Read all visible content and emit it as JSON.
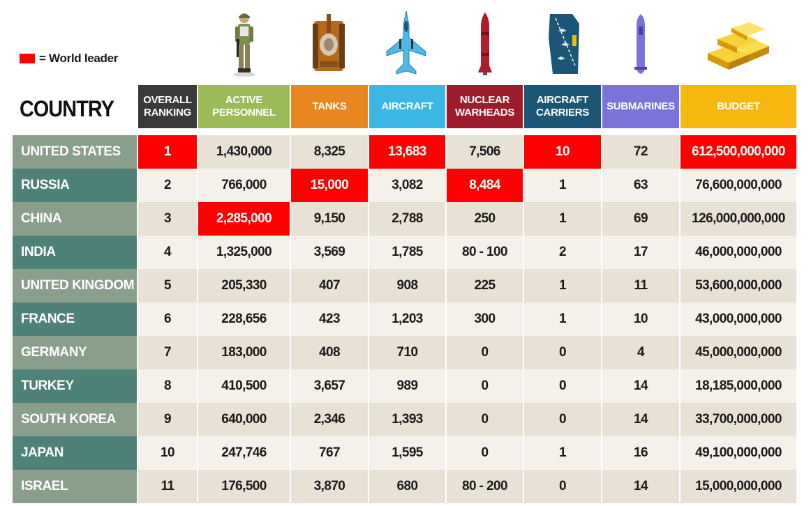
{
  "legend": {
    "label": "= World leader",
    "color": "#ff0000"
  },
  "country_header": "COUNTRY",
  "icons": [
    "soldier-icon",
    "tank-icon",
    "fighter-jet-icon",
    "nuclear-missile-icon",
    "aircraft-carrier-icon",
    "submarine-icon",
    "gold-bars-icon"
  ],
  "columns": [
    {
      "key": "rank",
      "label": "OVERALL RANKING",
      "color": "#3a3a3a"
    },
    {
      "key": "personnel",
      "label": "ACTIVE PERSONNEL",
      "color": "#9bbb59"
    },
    {
      "key": "tanks",
      "label": "TANKS",
      "color": "#e8861f"
    },
    {
      "key": "aircraft",
      "label": "AIRCRAFT",
      "color": "#3bb7e6"
    },
    {
      "key": "warheads",
      "label": "NUCLEAR WARHEADS",
      "color": "#9e1b2c"
    },
    {
      "key": "carriers",
      "label": "AIRCRAFT CARRIERS",
      "color": "#1d5577"
    },
    {
      "key": "submarines",
      "label": "SUBMARINES",
      "color": "#7a73d9"
    },
    {
      "key": "budget",
      "label": "BUDGET",
      "color": "#f6b80f"
    }
  ],
  "chart_data": {
    "type": "table",
    "title": "",
    "columns": [
      "COUNTRY",
      "OVERALL RANKING",
      "ACTIVE PERSONNEL",
      "TANKS",
      "AIRCRAFT",
      "NUCLEAR WARHEADS",
      "AIRCRAFT CARRIERS",
      "SUBMARINES",
      "BUDGET"
    ],
    "rows": [
      {
        "country": "UNITED STATES",
        "values": [
          "1",
          "1,430,000",
          "8,325",
          "13,683",
          "7,506",
          "10",
          "72",
          "612,500,000,000"
        ],
        "leader": [
          0,
          3,
          5,
          7
        ]
      },
      {
        "country": "RUSSIA",
        "values": [
          "2",
          "766,000",
          "15,000",
          "3,082",
          "8,484",
          "1",
          "63",
          "76,600,000,000"
        ],
        "leader": [
          2,
          4
        ]
      },
      {
        "country": "CHINA",
        "values": [
          "3",
          "2,285,000",
          "9,150",
          "2,788",
          "250",
          "1",
          "69",
          "126,000,000,000"
        ],
        "leader": [
          1
        ]
      },
      {
        "country": "INDIA",
        "values": [
          "4",
          "1,325,000",
          "3,569",
          "1,785",
          "80 - 100",
          "2",
          "17",
          "46,000,000,000"
        ],
        "leader": []
      },
      {
        "country": "UNITED KINGDOM",
        "values": [
          "5",
          "205,330",
          "407",
          "908",
          "225",
          "1",
          "11",
          "53,600,000,000"
        ],
        "leader": []
      },
      {
        "country": "FRANCE",
        "values": [
          "6",
          "228,656",
          "423",
          "1,203",
          "300",
          "1",
          "10",
          "43,000,000,000"
        ],
        "leader": []
      },
      {
        "country": "GERMANY",
        "values": [
          "7",
          "183,000",
          "408",
          "710",
          "0",
          "0",
          "4",
          "45,000,000,000"
        ],
        "leader": []
      },
      {
        "country": "TURKEY",
        "values": [
          "8",
          "410,500",
          "3,657",
          "989",
          "0",
          "0",
          "14",
          "18,185,000,000"
        ],
        "leader": []
      },
      {
        "country": "SOUTH KOREA",
        "values": [
          "9",
          "640,000",
          "2,346",
          "1,393",
          "0",
          "0",
          "14",
          "33,700,000,000"
        ],
        "leader": []
      },
      {
        "country": "JAPAN",
        "values": [
          "10",
          "247,746",
          "767",
          "1,595",
          "0",
          "1",
          "16",
          "49,100,000,000"
        ],
        "leader": []
      },
      {
        "country": "ISRAEL",
        "values": [
          "11",
          "176,500",
          "3,870",
          "680",
          "80 - 200",
          "0",
          "14",
          "15,000,000,000"
        ],
        "leader": []
      }
    ]
  }
}
